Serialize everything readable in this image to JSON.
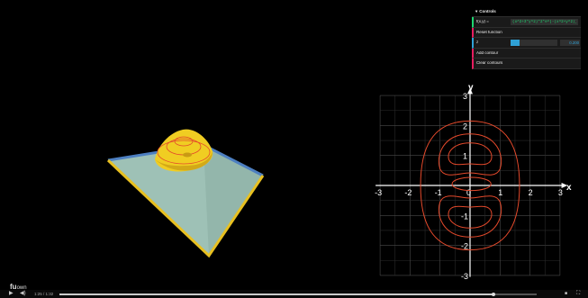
{
  "controls": {
    "title": "Controls",
    "function_label": "f(x,y) =",
    "function_value": "(x^2+3*y^2)*2*e^(-(x^2+y^2))",
    "reset_label": "Reset function",
    "z_label": "z",
    "z_value": "0.200",
    "z_fraction": 0.2,
    "add_contour_label": "Add contour",
    "clear_contours_label": "Clear contours",
    "colors": {
      "text_accent": "#1ed36f",
      "button_accent": "#e61d5f",
      "number_accent": "#2fa1d6"
    }
  },
  "plot": {
    "x_axis_name": "x",
    "y_axis_name": "y",
    "x_ticks": [
      "-3",
      "-2",
      "-1",
      "0",
      "1",
      "2",
      "3"
    ],
    "y_ticks": [
      "-3",
      "-2",
      "-1",
      "0",
      "1",
      "2",
      "3"
    ],
    "contour_color": "#e4492b",
    "grid": true
  },
  "surface": {
    "colors": {
      "plane": "#9ec1b6",
      "edge_front": "#e8c020",
      "edge_back": "#4d7fc1",
      "bump": "#f0cd22",
      "contour": "#e4492b"
    }
  },
  "watermark": {
    "brand_mark": "fu",
    "brand_text": "own"
  },
  "player": {
    "time": "1:25 / 1:32",
    "progress": 0.91
  }
}
